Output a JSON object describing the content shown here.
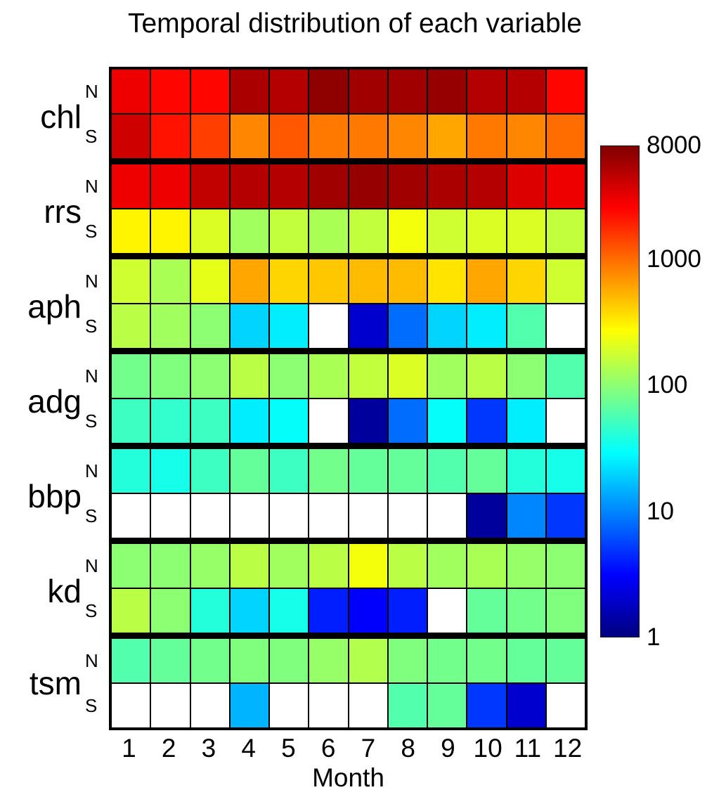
{
  "chart_data": {
    "type": "heatmap",
    "title": "Temporal distribution of each variable",
    "xlabel": "Month",
    "x": [
      "1",
      "2",
      "3",
      "4",
      "5",
      "6",
      "7",
      "8",
      "9",
      "10",
      "11",
      "12"
    ],
    "variables": [
      "chl",
      "rrs",
      "aph",
      "adg",
      "bbp",
      "kd",
      "tsm"
    ],
    "sub_rows": [
      "N",
      "S"
    ],
    "scale": "log",
    "vmin": 1,
    "vmax": 8000,
    "colormap": "jet",
    "no_data_color": "#ffffff",
    "colorbar_ticks": [
      8000,
      1000,
      100,
      10,
      1
    ],
    "legend_position": "right",
    "rows": [
      {
        "variable": "chl",
        "hemisphere": "N",
        "values": [
          3000,
          2500,
          2500,
          5500,
          5000,
          7000,
          6000,
          6000,
          6500,
          5000,
          5000,
          2500
        ]
      },
      {
        "variable": "chl",
        "hemisphere": "S",
        "values": [
          4000,
          2200,
          1500,
          800,
          1200,
          900,
          900,
          800,
          600,
          900,
          800,
          1000
        ]
      },
      {
        "variable": "rrs",
        "hemisphere": "N",
        "values": [
          3000,
          3000,
          4500,
          5000,
          5000,
          6000,
          6500,
          6000,
          5500,
          5000,
          3500,
          3000
        ]
      },
      {
        "variable": "rrs",
        "hemisphere": "S",
        "values": [
          300,
          300,
          200,
          120,
          160,
          130,
          160,
          250,
          180,
          200,
          200,
          160
        ]
      },
      {
        "variable": "aph",
        "hemisphere": "N",
        "values": [
          180,
          130,
          220,
          600,
          400,
          450,
          500,
          500,
          350,
          600,
          400,
          180
        ]
      },
      {
        "variable": "aph",
        "hemisphere": "S",
        "values": [
          150,
          120,
          100,
          20,
          25,
          null,
          2,
          8,
          20,
          25,
          60,
          null
        ]
      },
      {
        "variable": "adg",
        "hemisphere": "N",
        "values": [
          80,
          90,
          100,
          150,
          100,
          130,
          160,
          200,
          120,
          150,
          100,
          60
        ]
      },
      {
        "variable": "adg",
        "hemisphere": "S",
        "values": [
          50,
          45,
          50,
          25,
          30,
          null,
          1.3,
          8,
          30,
          5,
          25,
          null
        ]
      },
      {
        "variable": "bbp",
        "hemisphere": "N",
        "values": [
          40,
          35,
          50,
          70,
          50,
          80,
          70,
          70,
          60,
          70,
          40,
          35
        ]
      },
      {
        "variable": "bbp",
        "hemisphere": "S",
        "values": [
          null,
          null,
          null,
          null,
          null,
          null,
          null,
          null,
          null,
          1.3,
          10,
          5
        ]
      },
      {
        "variable": "kd",
        "hemisphere": "N",
        "values": [
          100,
          100,
          110,
          150,
          120,
          150,
          250,
          150,
          120,
          130,
          110,
          100
        ]
      },
      {
        "variable": "kd",
        "hemisphere": "S",
        "values": [
          150,
          100,
          40,
          20,
          35,
          4,
          3,
          4,
          null,
          70,
          80,
          90
        ]
      },
      {
        "variable": "tsm",
        "hemisphere": "N",
        "values": [
          60,
          70,
          80,
          90,
          90,
          110,
          140,
          90,
          80,
          80,
          70,
          70
        ]
      },
      {
        "variable": "tsm",
        "hemisphere": "S",
        "values": [
          null,
          null,
          null,
          15,
          null,
          null,
          null,
          60,
          70,
          5,
          2,
          null
        ]
      }
    ]
  }
}
